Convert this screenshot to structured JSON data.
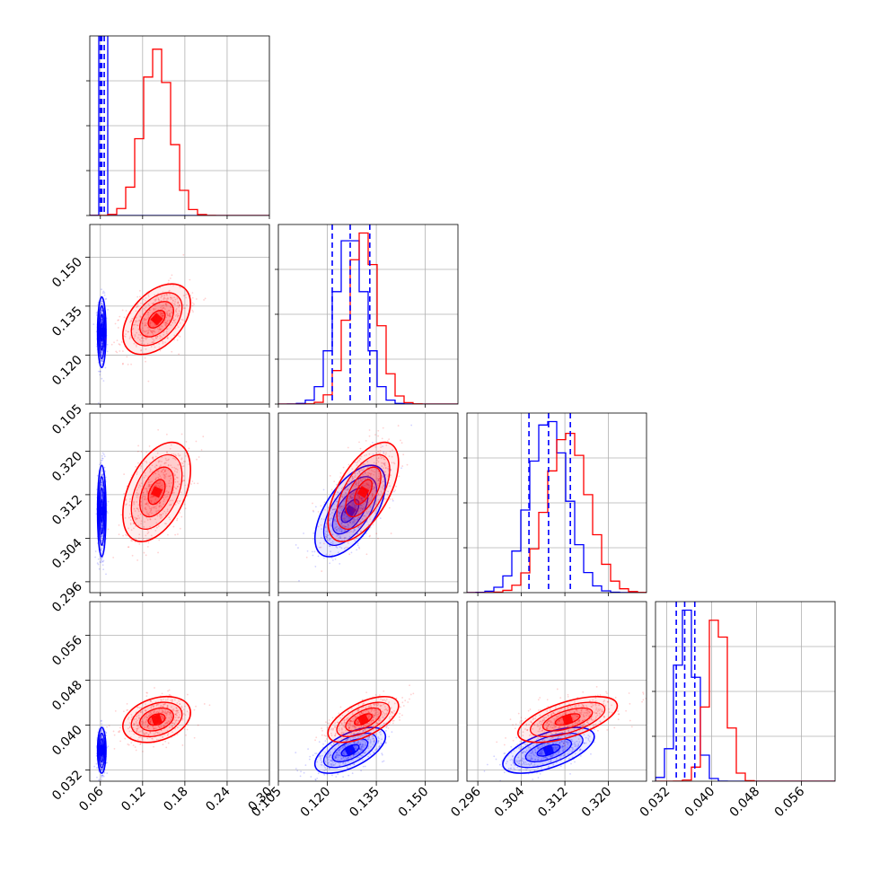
{
  "chart_data": {
    "type": "corner",
    "title": "",
    "parameters": [
      {
        "ticks": [
          0.06,
          0.12,
          0.18,
          0.24,
          0.3
        ],
        "tick_labels": [
          "0.06",
          "0.12",
          "0.18",
          "0.24",
          "0.30"
        ],
        "range": [
          0.045,
          0.3
        ]
      },
      {
        "ticks": [
          0.105,
          0.12,
          0.135,
          0.15
        ],
        "tick_labels": [
          "0.105",
          "0.120",
          "0.135",
          "0.150"
        ],
        "range": [
          0.105,
          0.16
        ]
      },
      {
        "ticks": [
          0.296,
          0.304,
          0.312,
          0.32
        ],
        "tick_labels": [
          "0.296",
          "0.304",
          "0.312",
          "0.320"
        ],
        "range": [
          0.294,
          0.327
        ]
      },
      {
        "ticks": [
          0.032,
          0.04,
          0.048,
          0.056
        ],
        "tick_labels": [
          "0.032",
          "0.040",
          "0.048",
          "0.056"
        ],
        "range": [
          0.03,
          0.062
        ]
      }
    ],
    "grid": true,
    "series": [
      {
        "color": "#0000ff",
        "means": [
          0.062,
          0.127,
          0.309,
          0.0355
        ],
        "sds": [
          0.0025,
          0.0045,
          0.0035,
          0.0017
        ],
        "correlations": [
          [
            1,
            0.0,
            0.0,
            0.0
          ],
          [
            0.0,
            1,
            0.6,
            0.6
          ],
          [
            0.0,
            0.6,
            1,
            0.6
          ],
          [
            0.0,
            0.6,
            0.6,
            1
          ]
        ],
        "quantiles_16_50_84": [
          [
            0.0598,
            0.062,
            0.0655
          ],
          [
            0.1215,
            0.127,
            0.133
          ],
          [
            0.3054,
            0.309,
            0.313
          ],
          [
            0.0337,
            0.0352,
            0.037
          ]
        ]
      },
      {
        "color": "#ff0000",
        "means": [
          0.14,
          0.131,
          0.3125,
          0.041
        ],
        "sds": [
          0.02,
          0.0045,
          0.0038,
          0.0017
        ],
        "correlations": [
          [
            1,
            0.45,
            0.45,
            0.3
          ],
          [
            0.45,
            1,
            0.6,
            0.6
          ],
          [
            0.45,
            0.6,
            1,
            0.6
          ],
          [
            0.3,
            0.6,
            0.6,
            1
          ]
        ],
        "quantiles_16_50_84": []
      }
    ]
  }
}
